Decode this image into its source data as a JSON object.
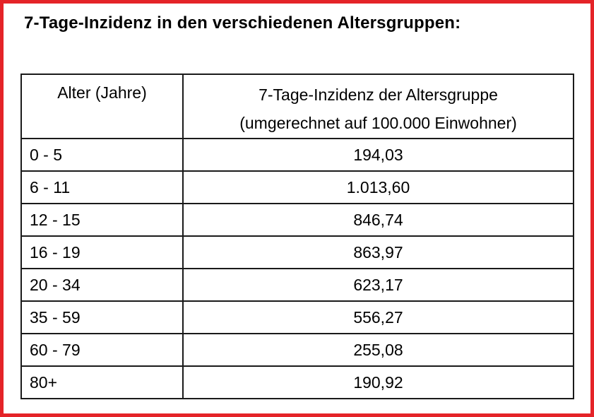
{
  "page": {
    "frame_border_color": "#e42328",
    "title": "7-Tage-Inzidenz in den verschiedenen Altersgruppen:"
  },
  "table": {
    "header": {
      "age_label": "Alter (Jahre)",
      "value_label_line1": "7-Tage-Inzidenz der Altersgruppe",
      "value_label_line2": "(umgerechnet auf 100.000 Einwohner)"
    },
    "rows": [
      {
        "age": "0 - 5",
        "incidence": "194,03"
      },
      {
        "age": "6 - 11",
        "incidence": "1.013,60"
      },
      {
        "age": "12 - 15",
        "incidence": "846,74"
      },
      {
        "age": "16 - 19",
        "incidence": "863,97"
      },
      {
        "age": "20 - 34",
        "incidence": "623,17"
      },
      {
        "age": "35 - 59",
        "incidence": "556,27"
      },
      {
        "age": "60 - 79",
        "incidence": "255,08"
      },
      {
        "age": "80+",
        "incidence": "190,92"
      }
    ]
  },
  "chart_data": {
    "type": "table",
    "title": "7-Tage-Inzidenz in den verschiedenen Altersgruppen",
    "columns": [
      "Alter (Jahre)",
      "7-Tage-Inzidenz der Altersgruppe (umgerechnet auf 100.000 Einwohner)"
    ],
    "categories": [
      "0 - 5",
      "6 - 11",
      "12 - 15",
      "16 - 19",
      "20 - 34",
      "35 - 59",
      "60 - 79",
      "80+"
    ],
    "values": [
      194.03,
      1013.6,
      846.74,
      863.97,
      623.17,
      556.27,
      255.08,
      190.92
    ]
  }
}
